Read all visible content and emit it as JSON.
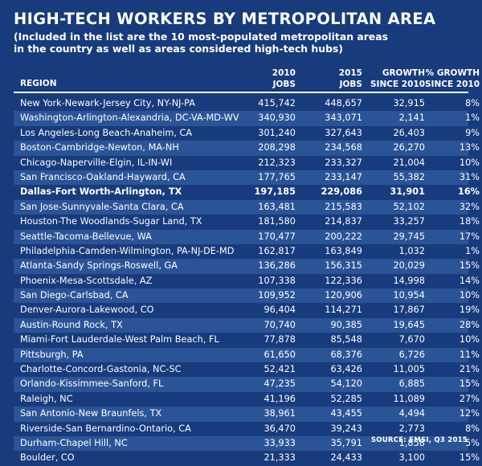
{
  "title": "HIGH-TECH WORKERS BY METROPOLITAN AREA",
  "subtitle": "(Included in the list are the 10 most-populated metropolitan areas in the country as well as areas considered high-tech hubs)",
  "headers": {
    "region": "REGION",
    "jobs2010": [
      "2010",
      "JOBS"
    ],
    "jobs2015": [
      "2015",
      "JOBS"
    ],
    "growth": [
      "GROWTH",
      "SINCE 2010"
    ],
    "pct": [
      "% GROWTH",
      "SINCE 2010"
    ]
  },
  "rows": [
    {
      "region": "New York-Newark-Jersey City, NY-NJ-PA",
      "jobs2010": "415,742",
      "jobs2015": "448,657",
      "growth": "32,915",
      "pct": "8%"
    },
    {
      "region": "Washington-Arlington-Alexandria, DC-VA-MD-WV",
      "jobs2010": "340,930",
      "jobs2015": "343,071",
      "growth": "2,141",
      "pct": "1%"
    },
    {
      "region": "Los Angeles-Long Beach-Anaheim, CA",
      "jobs2010": "301,240",
      "jobs2015": "327,643",
      "growth": "26,403",
      "pct": "9%"
    },
    {
      "region": "Boston-Cambridge-Newton, MA-NH",
      "jobs2010": "208,298",
      "jobs2015": "234,568",
      "growth": "26,270",
      "pct": "13%"
    },
    {
      "region": "Chicago-Naperville-Elgin, IL-IN-WI",
      "jobs2010": "212,323",
      "jobs2015": "233,327",
      "growth": "21,004",
      "pct": "10%"
    },
    {
      "region": "San Francisco-Oakland-Hayward, CA",
      "jobs2010": "177,765",
      "jobs2015": "233,147",
      "growth": "55,382",
      "pct": "31%"
    },
    {
      "region": "Dallas-Fort Worth-Arlington, TX",
      "jobs2010": "197,185",
      "jobs2015": "229,086",
      "growth": "31,901",
      "pct": "16%",
      "highlight": true
    },
    {
      "region": "San Jose-Sunnyvale-Santa Clara, CA",
      "jobs2010": "163,481",
      "jobs2015": "215,583",
      "growth": "52,102",
      "pct": "32%"
    },
    {
      "region": "Houston-The Woodlands-Sugar Land, TX",
      "jobs2010": "181,580",
      "jobs2015": "214,837",
      "growth": "33,257",
      "pct": "18%"
    },
    {
      "region": "Seattle-Tacoma-Bellevue, WA",
      "jobs2010": "170,477",
      "jobs2015": "200,222",
      "growth": "29,745",
      "pct": "17%"
    },
    {
      "region": "Philadelphia-Camden-Wilmington, PA-NJ-DE-MD",
      "jobs2010": "162,817",
      "jobs2015": "163,849",
      "growth": "1,032",
      "pct": "1%"
    },
    {
      "region": "Atlanta-Sandy Springs-Roswell, GA",
      "jobs2010": "136,286",
      "jobs2015": "156,315",
      "growth": "20,029",
      "pct": "15%"
    },
    {
      "region": "Phoenix-Mesa-Scottsdale, AZ",
      "jobs2010": "107,338",
      "jobs2015": "122,336",
      "growth": "14,998",
      "pct": "14%"
    },
    {
      "region": "San Diego-Carlsbad, CA",
      "jobs2010": "109,952",
      "jobs2015": "120,906",
      "growth": "10,954",
      "pct": "10%"
    },
    {
      "region": "Denver-Aurora-Lakewood, CO",
      "jobs2010": "96,404",
      "jobs2015": "114,271",
      "growth": "17,867",
      "pct": "19%"
    },
    {
      "region": "Austin-Round Rock, TX",
      "jobs2010": "70,740",
      "jobs2015": "90,385",
      "growth": "19,645",
      "pct": "28%"
    },
    {
      "region": "Miami-Fort Lauderdale-West Palm Beach, FL",
      "jobs2010": "77,878",
      "jobs2015": "85,548",
      "growth": "7,670",
      "pct": "10%"
    },
    {
      "region": "Pittsburgh, PA",
      "jobs2010": "61,650",
      "jobs2015": "68,376",
      "growth": "6,726",
      "pct": "11%"
    },
    {
      "region": "Charlotte-Concord-Gastonia, NC-SC",
      "jobs2010": "52,421",
      "jobs2015": "63,426",
      "growth": "11,005",
      "pct": "21%"
    },
    {
      "region": "Orlando-Kissimmee-Sanford, FL",
      "jobs2010": "47,235",
      "jobs2015": "54,120",
      "growth": "6,885",
      "pct": "15%"
    },
    {
      "region": "Raleigh, NC",
      "jobs2010": "41,196",
      "jobs2015": "52,285",
      "growth": "11,089",
      "pct": "27%"
    },
    {
      "region": "San Antonio-New Braunfels, TX",
      "jobs2010": "38,961",
      "jobs2015": "43,455",
      "growth": "4,494",
      "pct": "12%"
    },
    {
      "region": "Riverside-San Bernardino-Ontario, CA",
      "jobs2010": "36,470",
      "jobs2015": "39,243",
      "growth": "2,773",
      "pct": "8%"
    },
    {
      "region": "Durham-Chapel Hill, NC",
      "jobs2010": "33,933",
      "jobs2015": "35,791",
      "growth": "1,858",
      "pct": "5%"
    },
    {
      "region": "Boulder, CO",
      "jobs2010": "21,333",
      "jobs2015": "24,433",
      "growth": "3,100",
      "pct": "15%"
    }
  ],
  "source": "SOURCE: EMSI, Q3 2015",
  "colors": {
    "background": "#173b7c",
    "stripe": "#2b5497",
    "text": "#ffffff"
  }
}
